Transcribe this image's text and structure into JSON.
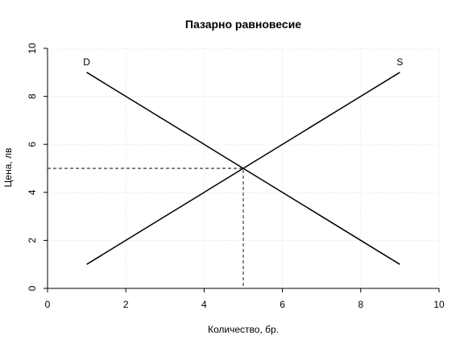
{
  "chart_data": {
    "type": "line",
    "title": "Пазарно равновесие",
    "xlabel": "Количество, бр.",
    "ylabel": "Цена, лв",
    "xlim": [
      0,
      10
    ],
    "ylim": [
      0,
      10
    ],
    "xticks": [
      0,
      2,
      4,
      6,
      8,
      10
    ],
    "yticks": [
      0,
      2,
      4,
      6,
      8,
      10
    ],
    "grid": true,
    "series": [
      {
        "name": "D",
        "x": [
          1,
          9
        ],
        "y": [
          9,
          1
        ],
        "color": "#000000"
      },
      {
        "name": "S",
        "x": [
          1,
          9
        ],
        "y": [
          1,
          9
        ],
        "color": "#000000"
      }
    ],
    "equilibrium": {
      "x": 5,
      "y": 5
    },
    "curve_labels": [
      {
        "text": "D",
        "x": 1,
        "y": 9.3
      },
      {
        "text": "S",
        "x": 9,
        "y": 9.3
      }
    ]
  }
}
